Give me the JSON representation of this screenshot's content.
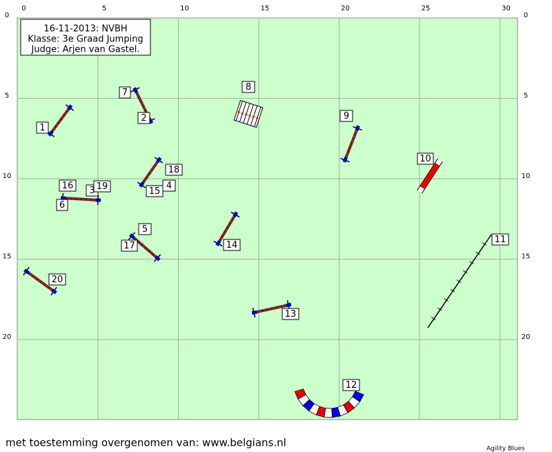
{
  "info": {
    "lines": [
      "16-11-2013: NVBH",
      "Klasse: 3e Graad Jumping",
      "Judge: Arjen van Gastel."
    ]
  },
  "axes": {
    "x_ticks": [
      0,
      5,
      10,
      15,
      20,
      25,
      30
    ],
    "y_ticks": [
      0,
      5,
      10,
      15,
      20
    ]
  },
  "obstacles": {
    "labels": [
      "1",
      "2",
      "3",
      "4",
      "5",
      "6",
      "7",
      "8",
      "9",
      "10",
      "11",
      "12",
      "13",
      "14",
      "15",
      "16",
      "17",
      "18",
      "19",
      "20"
    ]
  },
  "footer": {
    "credit": "met toestemming overgenomen van: www.belgians.nl",
    "brand": "Agility Blues"
  }
}
